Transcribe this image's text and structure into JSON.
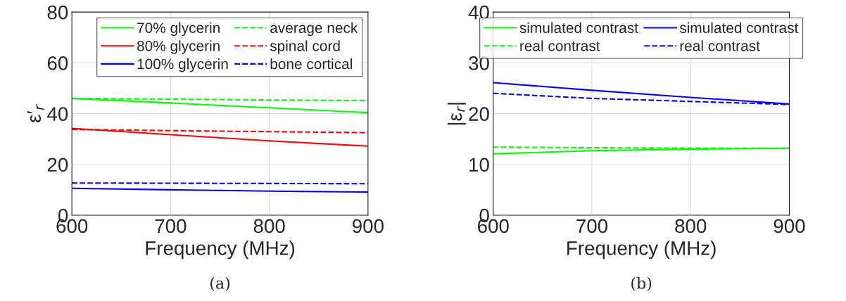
{
  "chart_data": [
    {
      "type": "line",
      "xlabel": "Frequency (MHz)",
      "ylabel": "ε′$_{r}$",
      "x": [
        600,
        700,
        800,
        900
      ],
      "xlim": [
        600,
        900
      ],
      "xticks": [
        600,
        700,
        800,
        900
      ],
      "ylim": [
        0,
        80
      ],
      "yticks": [
        0,
        20,
        40,
        60,
        80
      ],
      "grid": true,
      "legend": "top right",
      "annotations": [
        "(a)"
      ],
      "series": [
        {
          "name": "70% glycerin",
          "color": "#00ff00",
          "line_style": "solid",
          "values": [
            46,
            44.2,
            42.3,
            40.4
          ]
        },
        {
          "name": "80% glycerin",
          "color": "#ff0000",
          "line_style": "solid",
          "values": [
            34.2,
            31.7,
            29.3,
            27.2
          ]
        },
        {
          "name": "100% glycerin",
          "color": "#0000ff",
          "line_style": "solid",
          "values": [
            10.6,
            10.0,
            9.5,
            9.1
          ]
        },
        {
          "name": "average neck",
          "color": "#00ff00",
          "line_style": "dashed",
          "values": [
            46,
            45.7,
            45.4,
            45.1
          ]
        },
        {
          "name": "spinal cord",
          "color": "#ff0000",
          "line_style": "dashed",
          "values": [
            33.8,
            33.3,
            32.9,
            32.5
          ]
        },
        {
          "name": "bone cortical",
          "color": "#0000ff",
          "line_style": "dashed",
          "values": [
            12.7,
            12.6,
            12.5,
            12.4
          ]
        }
      ]
    },
    {
      "type": "line",
      "xlabel": "Frequency (MHz)",
      "ylabel": "|ε$_{r}$|",
      "x": [
        600,
        700,
        800,
        900
      ],
      "xlim": [
        600,
        900
      ],
      "xticks": [
        600,
        700,
        800,
        900
      ],
      "ylim": [
        0,
        40
      ],
      "yticks": [
        0,
        10,
        20,
        30,
        40
      ],
      "grid": true,
      "legend": "top",
      "annotations": [
        "(b)"
      ],
      "series": [
        {
          "name": "simulated contrast",
          "color": "#00ff00",
          "line_style": "solid",
          "values": [
            12.1,
            12.7,
            13.0,
            13.2
          ]
        },
        {
          "name": "real contrast",
          "color": "#00ff00",
          "line_style": "dashed",
          "values": [
            13.4,
            13.3,
            13.2,
            13.2
          ]
        },
        {
          "name": "simulated contrast",
          "color": "#0000ff",
          "line_style": "solid",
          "values": [
            26.1,
            24.6,
            23.2,
            21.9
          ]
        },
        {
          "name": "real contrast",
          "color": "#0000ff",
          "line_style": "dashed",
          "values": [
            24.0,
            23.0,
            22.4,
            21.8
          ]
        }
      ]
    }
  ]
}
